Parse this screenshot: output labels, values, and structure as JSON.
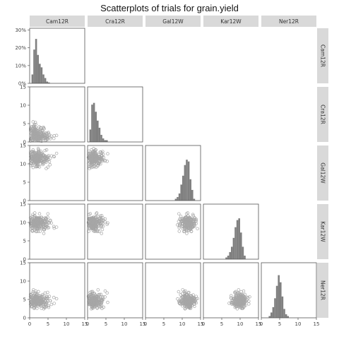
{
  "chart_data": {
    "type": "scatter",
    "title": "Scatterplots of trials for grain.yield",
    "trials": [
      "Cam12R",
      "Cra12R",
      "Gal12W",
      "Kar12W",
      "Ner12R"
    ],
    "axis_ticks": [
      "0",
      "5",
      "10",
      "15"
    ],
    "y_axis_ticks": [
      "0",
      "5",
      "10",
      "15"
    ],
    "hist_y_ticks": [
      "0%",
      "10%",
      "20%",
      "30%"
    ],
    "xlim": [
      0,
      15
    ],
    "ylim": [
      0,
      15
    ],
    "hist_ylim": [
      0,
      0.31
    ],
    "bin_width": 0.5,
    "grid": false,
    "colors": {
      "bar": "#808080",
      "point": "#a6a6a6",
      "strip": "#d9d9d9",
      "panel_border": "#555555"
    },
    "distributions": {
      "Cam12R": {
        "center": 2.0,
        "spread": 0.9,
        "skew": 0.8
      },
      "Cra12R": {
        "center": 1.6,
        "spread": 0.8,
        "skew": 0.9
      },
      "Gal12W": {
        "center": 11.6,
        "spread": 1.0,
        "skew": -0.3
      },
      "Kar12W": {
        "center": 9.8,
        "spread": 1.0,
        "skew": -0.2
      },
      "Ner12R": {
        "center": 4.7,
        "spread": 1.0,
        "skew": 0.0
      }
    },
    "histograms": {
      "Cam12R": [
        [
          0.5,
          0.05
        ],
        [
          1.0,
          0.19
        ],
        [
          1.5,
          0.25
        ],
        [
          2.0,
          0.16
        ],
        [
          2.5,
          0.11
        ],
        [
          3.0,
          0.09
        ],
        [
          3.5,
          0.05
        ],
        [
          4.0,
          0.03
        ],
        [
          4.5,
          0.01
        ],
        [
          5.0,
          0.005
        ]
      ],
      "Cra12R": [
        [
          0.5,
          0.07
        ],
        [
          1.0,
          0.21
        ],
        [
          1.5,
          0.22
        ],
        [
          2.0,
          0.17
        ],
        [
          2.5,
          0.12
        ],
        [
          3.0,
          0.08
        ],
        [
          3.5,
          0.04
        ],
        [
          4.0,
          0.02
        ],
        [
          4.5,
          0.01
        ],
        [
          5.0,
          0.01
        ]
      ],
      "Gal12W": [
        [
          8.0,
          0.01
        ],
        [
          8.5,
          0.02
        ],
        [
          9.0,
          0.04
        ],
        [
          9.5,
          0.09
        ],
        [
          10.0,
          0.14
        ],
        [
          10.5,
          0.2
        ],
        [
          11.0,
          0.23
        ],
        [
          11.5,
          0.22
        ],
        [
          12.0,
          0.12
        ],
        [
          12.5,
          0.06
        ],
        [
          13.0,
          0.01
        ]
      ],
      "Kar12W": [
        [
          6.0,
          0.01
        ],
        [
          6.5,
          0.02
        ],
        [
          7.0,
          0.04
        ],
        [
          7.5,
          0.07
        ],
        [
          8.0,
          0.12
        ],
        [
          8.5,
          0.18
        ],
        [
          9.0,
          0.22
        ],
        [
          9.5,
          0.23
        ],
        [
          10.0,
          0.15
        ],
        [
          10.5,
          0.07
        ],
        [
          11.0,
          0.02
        ]
      ],
      "Ner12R": [
        [
          2.0,
          0.01
        ],
        [
          2.5,
          0.03
        ],
        [
          3.0,
          0.06
        ],
        [
          3.5,
          0.11
        ],
        [
          4.0,
          0.18
        ],
        [
          4.5,
          0.24
        ],
        [
          5.0,
          0.2
        ],
        [
          5.5,
          0.12
        ],
        [
          6.0,
          0.05
        ],
        [
          6.5,
          0.02
        ],
        [
          7.0,
          0.01
        ]
      ]
    }
  }
}
